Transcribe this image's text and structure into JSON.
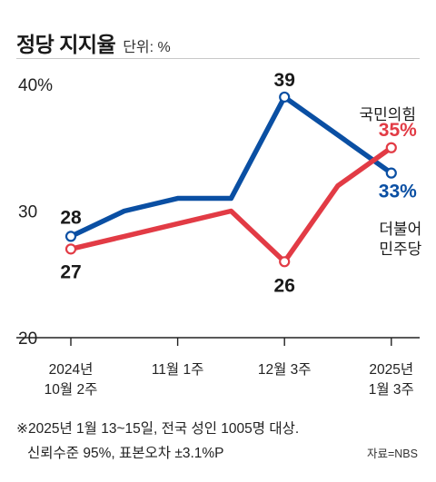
{
  "header": {
    "title": "정당 지지율",
    "unit": "단위: %"
  },
  "colors": {
    "blue": "#0a4fa3",
    "red": "#e23b45",
    "axis": "#222222",
    "text": "#1a1a1a"
  },
  "chart_data": {
    "type": "line",
    "title": "정당 지지율",
    "unit": "단위: %",
    "ylim": [
      20,
      40
    ],
    "y_ticks": [
      "20",
      "30",
      "40%"
    ],
    "x_points": 7,
    "x_tick_indices": [
      0,
      2,
      4,
      6
    ],
    "x_tick_labels": [
      [
        "2024년",
        "10월 2주"
      ],
      [
        "11월 1주"
      ],
      [
        "12월 3주"
      ],
      [
        "2025년",
        "1월 3주"
      ]
    ],
    "series": [
      {
        "name": "더불어민주당",
        "label_lines": [
          "더불어",
          "민주당"
        ],
        "color": "#0a4fa3",
        "values": [
          28,
          30,
          31,
          31,
          39,
          36,
          33
        ],
        "point_labels": {
          "0": "28",
          "4": "39",
          "6": "33%"
        }
      },
      {
        "name": "국민의힘",
        "label_lines": [
          "국민의힘"
        ],
        "color": "#e23b45",
        "values": [
          27,
          28,
          29,
          30,
          26,
          32,
          35
        ],
        "point_labels": {
          "0": "27",
          "4": "26",
          "6": "35%"
        }
      }
    ]
  },
  "footnote": {
    "line1": "※2025년 1월 13~15일, 전국 성인 1005명 대상.",
    "line2": "신뢰수준 95%, 표본오차 ±3.1%P"
  },
  "source": "자료=NBS"
}
